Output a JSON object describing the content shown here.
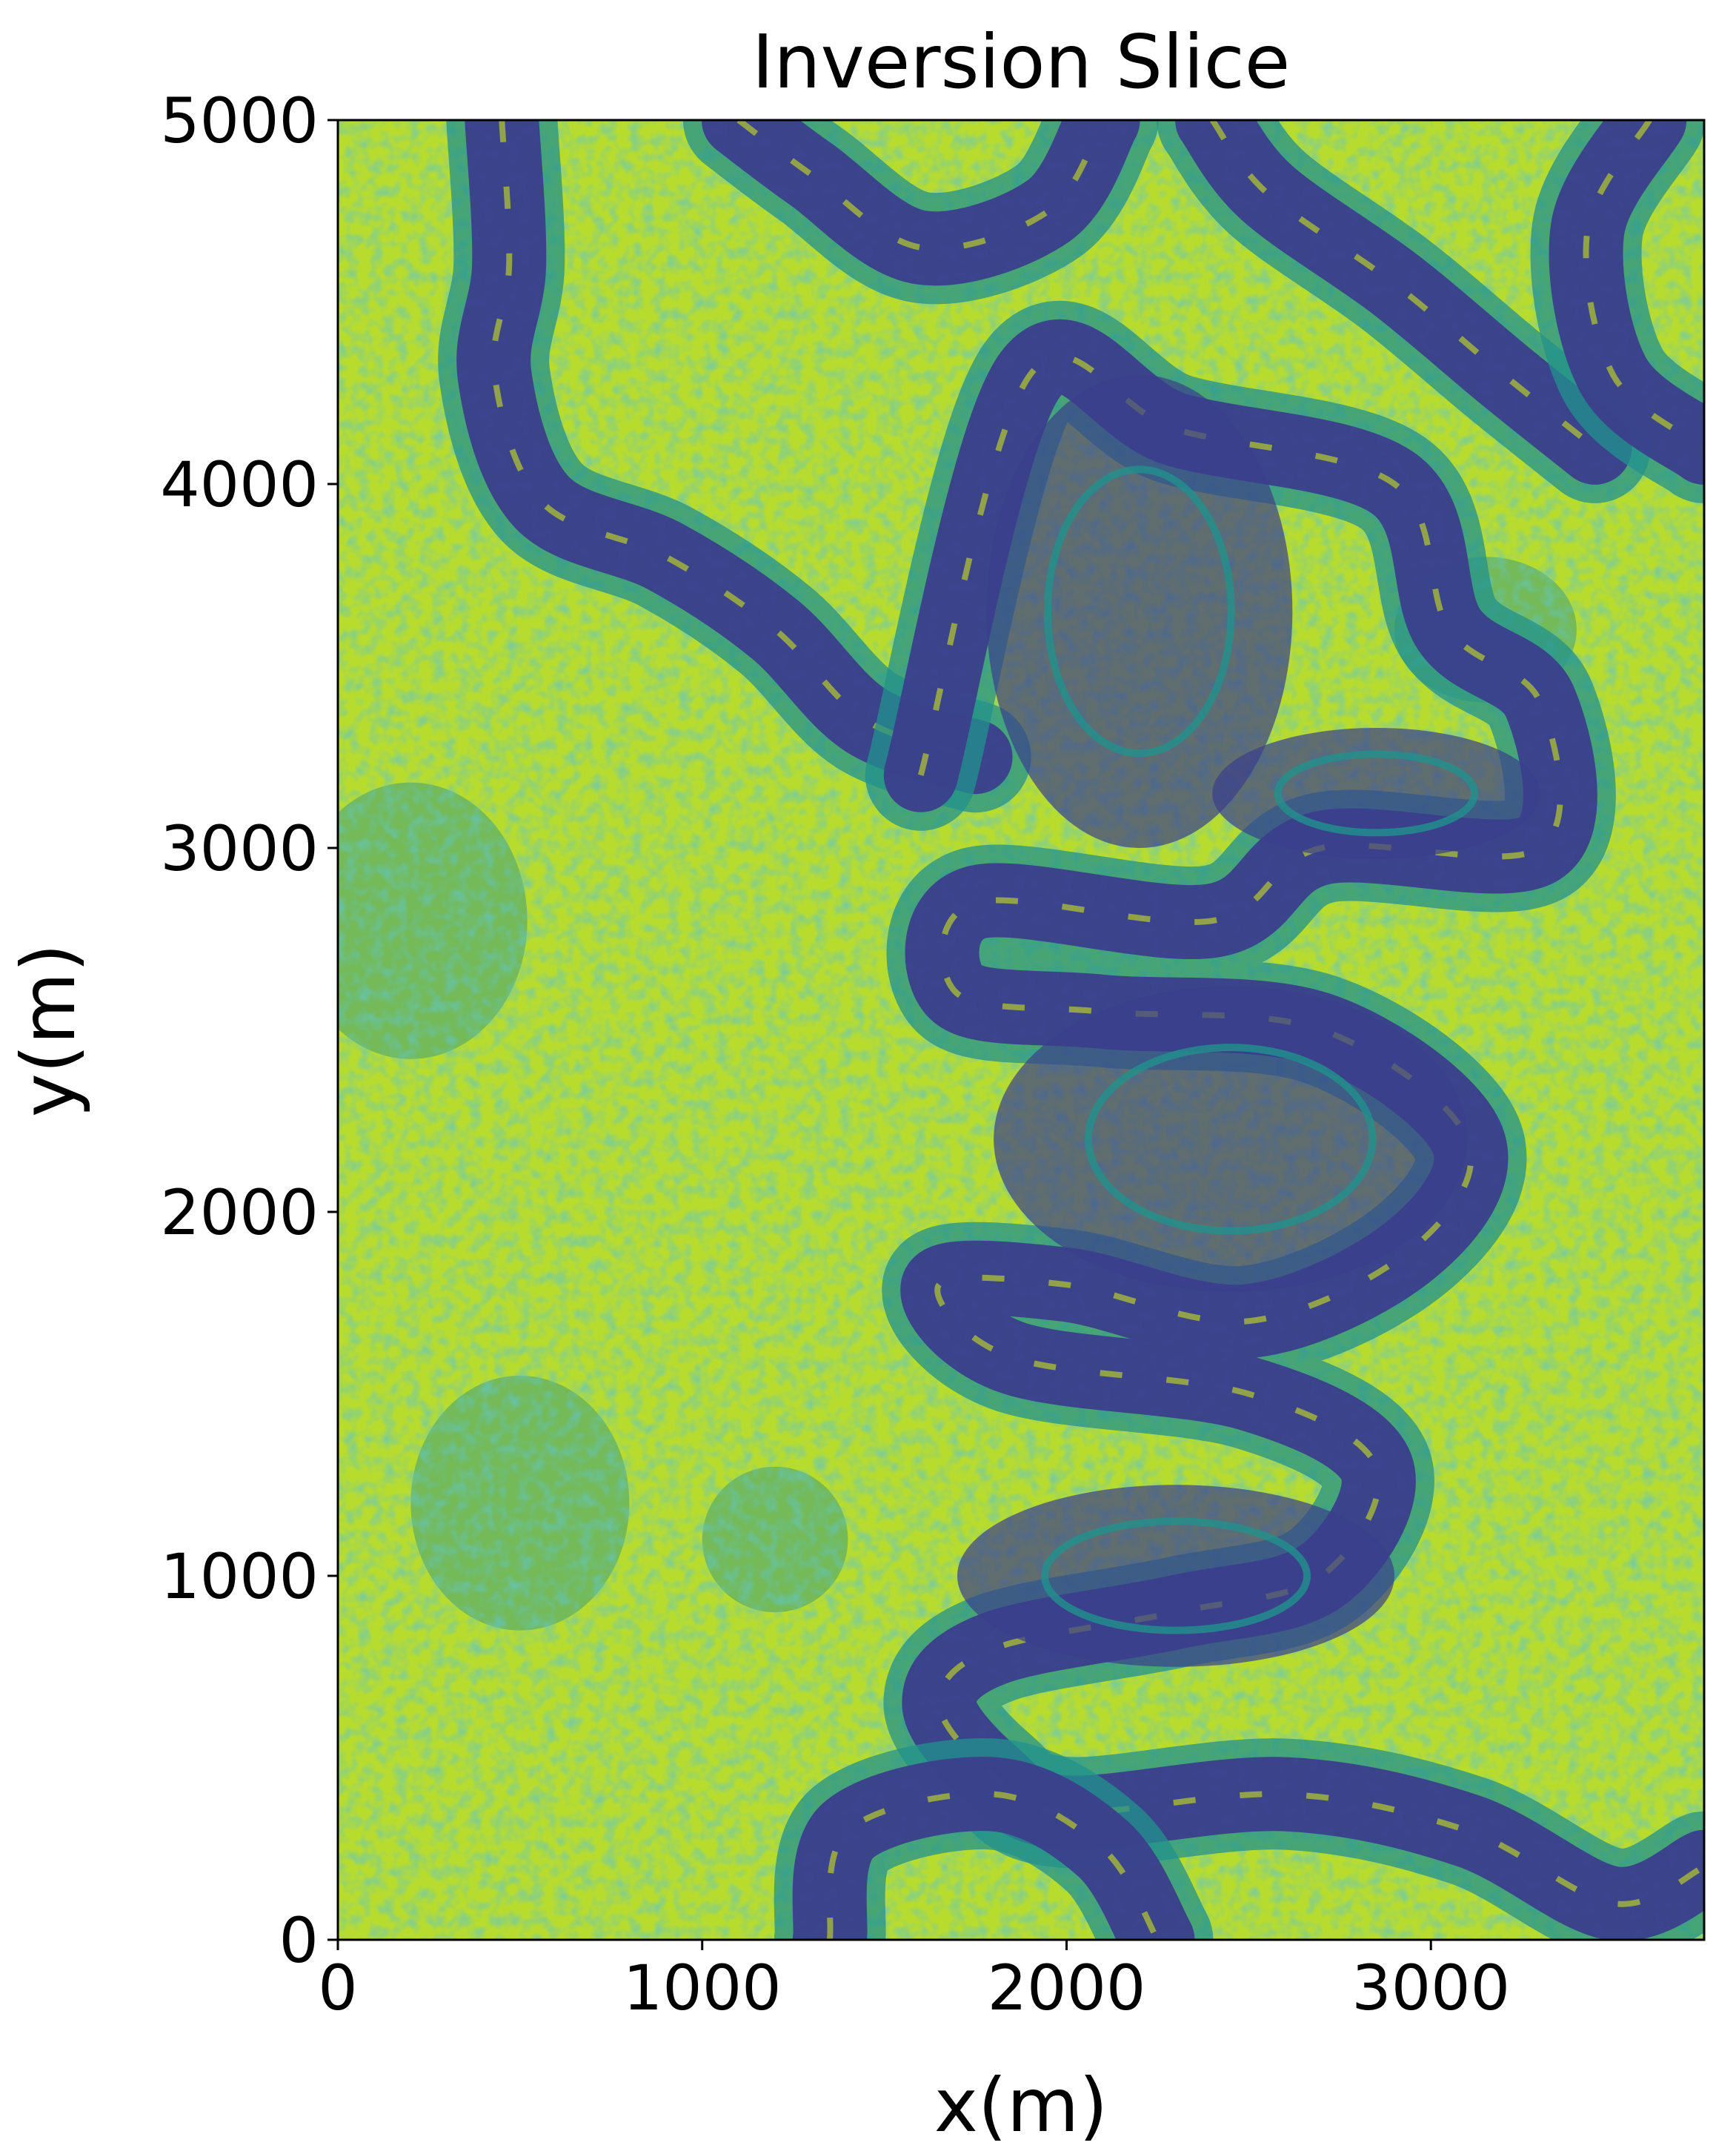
{
  "chart_data": {
    "type": "heatmap",
    "title": "Inversion Slice",
    "xlabel": "x(m)",
    "ylabel": "y(m)",
    "xlim": [
      0,
      3750
    ],
    "ylim": [
      0,
      5000
    ],
    "x_ticks": [
      {
        "value": 0,
        "label": "0"
      },
      {
        "value": 1000,
        "label": "1000"
      },
      {
        "value": 2000,
        "label": "2000"
      },
      {
        "value": 3000,
        "label": "3000"
      }
    ],
    "y_ticks": [
      {
        "value": 0,
        "label": "0"
      },
      {
        "value": 1000,
        "label": "1000"
      },
      {
        "value": 2000,
        "label": "2000"
      },
      {
        "value": 3000,
        "label": "3000"
      },
      {
        "value": 4000,
        "label": "4000"
      },
      {
        "value": 5000,
        "label": "5000"
      }
    ],
    "colormap": "viridis",
    "colors": {
      "low": "#3b3f8c",
      "mid": "#21918c",
      "high": "#cde11d",
      "peak": "#e5e419"
    },
    "grid": false,
    "legend": "none",
    "channels": [
      {
        "name": "channel-west-tributary",
        "path": [
          [
            450,
            5000
          ],
          [
            470,
            4600
          ],
          [
            430,
            4300
          ],
          [
            560,
            3950
          ],
          [
            900,
            3800
          ],
          [
            1200,
            3600
          ],
          [
            1450,
            3350
          ],
          [
            1750,
            3250
          ]
        ]
      },
      {
        "name": "channel-top-loop",
        "path": [
          [
            1100,
            5000
          ],
          [
            1300,
            4850
          ],
          [
            1600,
            4650
          ],
          [
            1950,
            4750
          ],
          [
            2100,
            5000
          ]
        ]
      },
      {
        "name": "channel-north-east",
        "path": [
          [
            2400,
            5000
          ],
          [
            2550,
            4800
          ],
          [
            2900,
            4550
          ],
          [
            3200,
            4300
          ],
          [
            3450,
            4100
          ]
        ]
      },
      {
        "name": "channel-meander-main",
        "path": [
          [
            1600,
            3200
          ],
          [
            1900,
            4300
          ],
          [
            2300,
            4150
          ],
          [
            2900,
            4000
          ],
          [
            3050,
            3600
          ],
          [
            3300,
            3400
          ],
          [
            3300,
            3000
          ],
          [
            2700,
            3000
          ],
          [
            2400,
            2800
          ],
          [
            1750,
            2850
          ],
          [
            1700,
            2600
          ],
          [
            2100,
            2550
          ],
          [
            2700,
            2500
          ],
          [
            3100,
            2200
          ],
          [
            2950,
            1900
          ],
          [
            2500,
            1700
          ],
          [
            2000,
            1800
          ],
          [
            1650,
            1800
          ],
          [
            1850,
            1600
          ],
          [
            2500,
            1500
          ],
          [
            2850,
            1300
          ],
          [
            2700,
            1000
          ],
          [
            2300,
            900
          ],
          [
            1800,
            800
          ],
          [
            1650,
            650
          ],
          [
            1800,
            450
          ],
          [
            2000,
            350
          ],
          [
            2600,
            400
          ],
          [
            3100,
            300
          ],
          [
            3500,
            100
          ],
          [
            3750,
            200
          ]
        ]
      },
      {
        "name": "channel-bottom-loop",
        "path": [
          [
            1350,
            0
          ],
          [
            1400,
            300
          ],
          [
            1800,
            400
          ],
          [
            2100,
            250
          ],
          [
            2250,
            0
          ]
        ]
      },
      {
        "name": "channel-east-loop",
        "path": [
          [
            3600,
            5000
          ],
          [
            3430,
            4700
          ],
          [
            3500,
            4300
          ],
          [
            3750,
            4100
          ]
        ]
      }
    ],
    "dark_blobs": [
      {
        "x": 2200,
        "y": 3650,
        "rx": 420,
        "ry": 650
      },
      {
        "x": 2450,
        "y": 2200,
        "rx": 650,
        "ry": 420
      },
      {
        "x": 2300,
        "y": 1000,
        "rx": 600,
        "ry": 250
      },
      {
        "x": 2850,
        "y": 3150,
        "rx": 450,
        "ry": 180
      }
    ],
    "mid_patches": [
      {
        "x": 200,
        "y": 2800,
        "rx": 320,
        "ry": 380
      },
      {
        "x": 500,
        "y": 1200,
        "rx": 300,
        "ry": 350
      },
      {
        "x": 1200,
        "y": 1100,
        "rx": 200,
        "ry": 200
      },
      {
        "x": 3150,
        "y": 3600,
        "rx": 250,
        "ry": 200
      }
    ]
  }
}
